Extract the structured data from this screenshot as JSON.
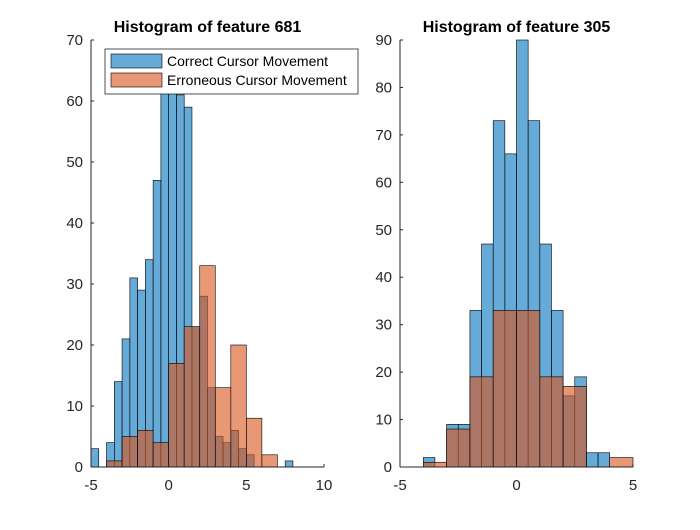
{
  "chart_data": [
    {
      "type": "bar",
      "title": "Histogram of feature 681",
      "xlim": [
        -5,
        10
      ],
      "ylim": [
        0,
        70
      ],
      "xticks": [
        "-5",
        "0",
        "5",
        "10"
      ],
      "yticks": [
        "0",
        "10",
        "20",
        "30",
        "40",
        "50",
        "60",
        "70"
      ],
      "legend": {
        "placement": "top-right",
        "entries": [
          "Correct Cursor Movement",
          "Erroneous Cursor Movement"
        ]
      },
      "series": [
        {
          "name": "Correct Cursor Movement",
          "color": "#0072BD",
          "bin_width": 0.5,
          "bin_starts": [
            -5,
            -4,
            -3.5,
            -3,
            -2.5,
            -2,
            -1.5,
            -1,
            -0.5,
            0,
            0.5,
            1,
            1.5,
            2,
            2.5,
            3,
            3.5,
            4,
            4.5,
            5,
            7.5
          ],
          "values": [
            3,
            4,
            14,
            21,
            31,
            29,
            34,
            47,
            62,
            62,
            61,
            59,
            23,
            28,
            13,
            5,
            4,
            6,
            3,
            2,
            1
          ]
        },
        {
          "name": "Erroneous Cursor Movement",
          "color": "#D95319",
          "bin_width": 1,
          "bin_starts": [
            -4,
            -3,
            -2,
            -1,
            0,
            1,
            2,
            3,
            4,
            5,
            6
          ],
          "values": [
            1,
            5,
            6,
            4,
            17,
            23,
            33,
            13,
            20,
            8,
            2
          ]
        }
      ]
    },
    {
      "type": "bar",
      "title": "Histogram of feature 305",
      "xlim": [
        -5,
        5
      ],
      "ylim": [
        0,
        90
      ],
      "xticks": [
        "-5",
        "0",
        "5"
      ],
      "yticks": [
        "0",
        "10",
        "20",
        "30",
        "40",
        "50",
        "60",
        "70",
        "80",
        "90"
      ],
      "series": [
        {
          "name": "Correct Cursor Movement",
          "color": "#0072BD",
          "bin_width": 0.5,
          "bin_starts": [
            -4,
            -3,
            -2.5,
            -2,
            -1.5,
            -1,
            -0.5,
            0,
            0.5,
            1,
            1.5,
            2,
            2.5,
            3,
            3.5
          ],
          "values": [
            2,
            9,
            9,
            33,
            47,
            73,
            66,
            90,
            73,
            47,
            33,
            15,
            19,
            3,
            3
          ]
        },
        {
          "name": "Erroneous Cursor Movement",
          "color": "#D95319",
          "bin_width": 1,
          "bin_starts": [
            -4,
            -3,
            -2,
            -1,
            0,
            1,
            2,
            4
          ],
          "values": [
            1,
            8,
            19,
            33,
            33,
            19,
            17,
            2
          ]
        }
      ]
    }
  ]
}
